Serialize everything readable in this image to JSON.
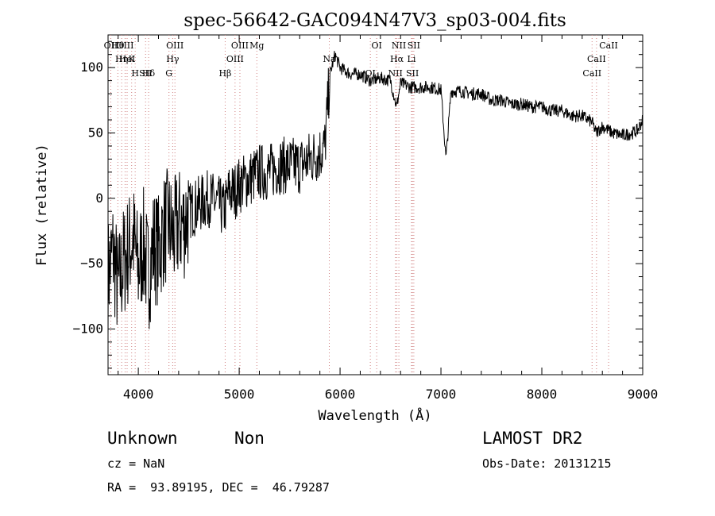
{
  "chart_data": {
    "type": "line",
    "title": "spec-56642-GAC094N47V3_sp03-004.fits",
    "xlabel": "Wavelength (Å)",
    "ylabel": "Flux (relative)",
    "xlim": [
      3700,
      9000
    ],
    "ylim": [
      -135,
      125
    ],
    "x_ticks": [
      4000,
      5000,
      6000,
      7000,
      8000,
      9000
    ],
    "y_ticks": [
      -100,
      -50,
      0,
      50,
      100
    ],
    "grid": false,
    "series": [
      {
        "x": [
          3700,
          3750,
          3800,
          3850,
          3900,
          3950,
          4000,
          4050,
          4100,
          4150,
          4200,
          4250,
          4300,
          4350,
          4400,
          4450,
          4500,
          4600,
          4700,
          4800,
          4850,
          4900,
          4950,
          5000,
          5100,
          5200,
          5300,
          5400,
          5500,
          5600,
          5700,
          5800,
          5850,
          5900,
          5950,
          6000,
          6100,
          6200,
          6300,
          6400,
          6500,
          6560,
          6600,
          6700,
          6800,
          6900,
          7000,
          7050,
          7100,
          7200,
          7300,
          7400,
          7500,
          7600,
          7700,
          7800,
          7900,
          8000,
          8100,
          8200,
          8300,
          8400,
          8500,
          8540,
          8600,
          8700,
          8800,
          8900,
          8950,
          9000
        ],
        "y": [
          -60,
          -40,
          -70,
          -50,
          -40,
          -30,
          -55,
          -35,
          -60,
          -35,
          -40,
          -25,
          -20,
          -30,
          -20,
          -20,
          -10,
          -5,
          0,
          -5,
          -10,
          5,
          5,
          10,
          15,
          20,
          20,
          25,
          25,
          25,
          30,
          35,
          40,
          95,
          110,
          100,
          95,
          95,
          90,
          92,
          90,
          70,
          88,
          85,
          85,
          85,
          83,
          30,
          82,
          82,
          80,
          80,
          75,
          75,
          72,
          72,
          70,
          70,
          67,
          67,
          63,
          63,
          58,
          50,
          55,
          50,
          48,
          50,
          52,
          60
        ]
      }
    ],
    "annotations": [
      {
        "label": "Hθ",
        "x": 3797
      },
      {
        "label": "K",
        "x": 3934
      },
      {
        "label": "Hδ",
        "x": 4102
      },
      {
        "label": "OII",
        "x": 3727
      },
      {
        "label": "HeI",
        "x": 3889
      },
      {
        "label": "SII",
        "x": 4072
      },
      {
        "label": "OIII",
        "x": 3869
      },
      {
        "label": "Hη",
        "x": 3835
      },
      {
        "label": "H",
        "x": 3969
      },
      {
        "label": "OIII",
        "x": 4363
      },
      {
        "label": "Hγ",
        "x": 4341
      },
      {
        "label": "G",
        "x": 4304
      },
      {
        "label": "OIII",
        "x": 5007
      },
      {
        "label": "OIII",
        "x": 4959
      },
      {
        "label": "Hβ",
        "x": 4861
      },
      {
        "label": "Mg",
        "x": 5175
      },
      {
        "label": "Na",
        "x": 5893
      },
      {
        "label": "OI",
        "x": 6300
      },
      {
        "label": "OI",
        "x": 6363
      },
      {
        "label": "Hα",
        "x": 6563
      },
      {
        "label": "SII",
        "x": 6717
      },
      {
        "label": "NII",
        "x": 6583
      },
      {
        "label": "Li",
        "x": 6708
      },
      {
        "label": "NII",
        "x": 6548
      },
      {
        "label": "SII",
        "x": 6731
      },
      {
        "label": "CaII",
        "x": 8542
      },
      {
        "label": "CaII",
        "x": 8498
      },
      {
        "label": "CaII",
        "x": 8662
      }
    ]
  },
  "info": {
    "class": "Unknown",
    "subclass": "Non",
    "survey": "LAMOST DR2",
    "cz": "cz = NaN",
    "obs_date": "Obs-Date: 20131215",
    "coords": "RA =  93.89195, DEC =  46.79287"
  }
}
